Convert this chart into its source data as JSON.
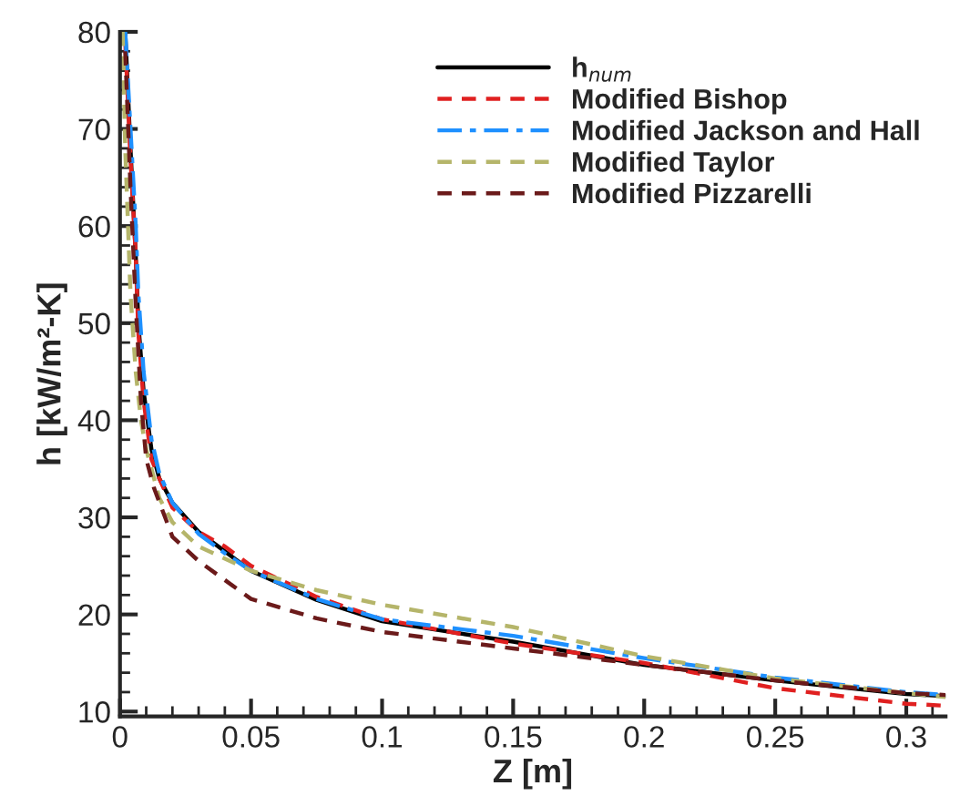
{
  "chart_data": {
    "type": "line",
    "xlabel": "Z [m]",
    "ylabel": "h [kW/m²-K]",
    "xlim": [
      0,
      0.315
    ],
    "ylim": [
      9.5,
      80
    ],
    "xticks": [
      0,
      0.05,
      0.1,
      0.15,
      0.2,
      0.25,
      0.3
    ],
    "yticks": [
      10,
      20,
      30,
      40,
      50,
      60,
      70,
      80
    ],
    "grid": false,
    "legend": "top right",
    "marker": "none",
    "series": [
      {
        "name": "h$_{num}$",
        "color": "#000000",
        "line_style": "solid",
        "x": [
          0.002,
          0.004,
          0.006,
          0.007,
          0.009,
          0.012,
          0.015,
          0.02,
          0.03,
          0.04,
          0.05,
          0.075,
          0.1,
          0.15,
          0.2,
          0.25,
          0.3,
          0.315
        ],
        "values": [
          80,
          68,
          57,
          50,
          43,
          37,
          34,
          31.5,
          28.5,
          26.5,
          24.5,
          21.5,
          19.3,
          17.2,
          14.8,
          13.2,
          11.8,
          11.6
        ]
      },
      {
        "name": "Modified Bishop",
        "color": "#e02020",
        "line_style": "dashed",
        "x": [
          0.002,
          0.004,
          0.006,
          0.007,
          0.009,
          0.012,
          0.015,
          0.02,
          0.03,
          0.04,
          0.05,
          0.075,
          0.1,
          0.15,
          0.2,
          0.25,
          0.3,
          0.315
        ],
        "values": [
          79,
          67,
          57,
          49,
          42,
          36,
          34,
          31,
          28.5,
          27,
          25,
          21.8,
          19.5,
          17,
          15,
          12.4,
          10.8,
          10.6
        ]
      },
      {
        "name": "Modified Jackson and Hall",
        "color": "#1e90ff",
        "line_style": "dashdot",
        "x": [
          0.002,
          0.004,
          0.006,
          0.007,
          0.009,
          0.012,
          0.015,
          0.02,
          0.03,
          0.04,
          0.05,
          0.075,
          0.1,
          0.15,
          0.2,
          0.25,
          0.3,
          0.315
        ],
        "values": [
          80,
          70,
          60,
          53,
          45,
          38,
          34.5,
          31.5,
          28.3,
          26.3,
          24.5,
          21.6,
          19.5,
          17.8,
          15.5,
          13.5,
          12,
          11.7
        ]
      },
      {
        "name": "Modified Taylor",
        "color": "#b5b56a",
        "line_style": "dashed",
        "x": [
          0.001,
          0.002,
          0.004,
          0.006,
          0.008,
          0.01,
          0.015,
          0.02,
          0.03,
          0.05,
          0.075,
          0.1,
          0.15,
          0.2,
          0.25,
          0.3,
          0.315
        ],
        "values": [
          80,
          68,
          53,
          45,
          40,
          37,
          32,
          29.5,
          27,
          24.5,
          22.5,
          21,
          18.7,
          15.7,
          13.4,
          11.9,
          11.5
        ]
      },
      {
        "name": "Modified Pizzarelli",
        "color": "#6b1a1a",
        "line_style": "dashed",
        "x": [
          0.002,
          0.004,
          0.006,
          0.008,
          0.01,
          0.013,
          0.02,
          0.03,
          0.05,
          0.075,
          0.1,
          0.15,
          0.2,
          0.25,
          0.3,
          0.315
        ],
        "values": [
          78,
          64,
          52,
          42,
          36,
          33,
          28,
          25.5,
          21.6,
          19.6,
          18.2,
          16.5,
          14.8,
          13.2,
          11.9,
          11.7
        ]
      }
    ]
  }
}
